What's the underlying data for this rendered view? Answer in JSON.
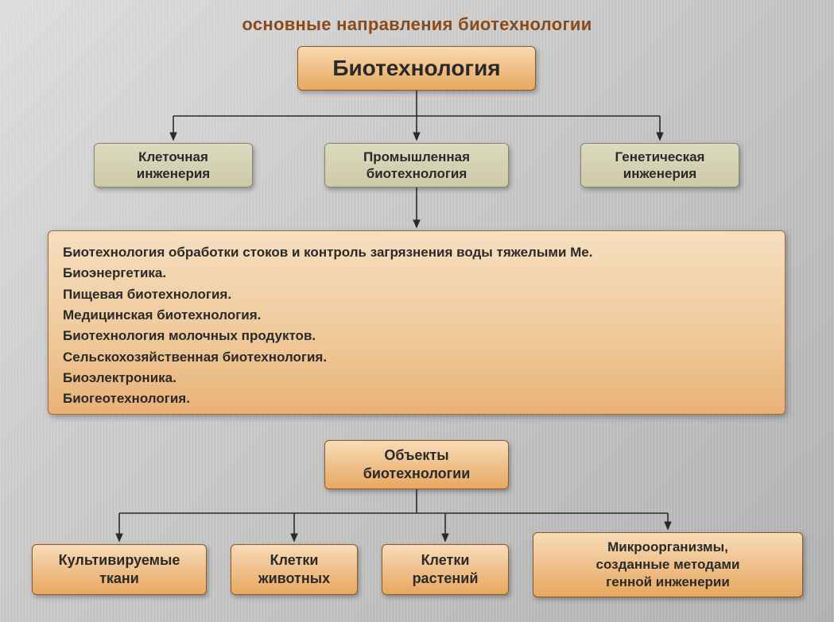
{
  "title": "основные направления биотехнологии",
  "root": {
    "label": "Биотехнология"
  },
  "branches": {
    "left": {
      "line1": "Клеточная",
      "line2": "инженерия"
    },
    "center": {
      "line1": "Промышленная",
      "line2": "биотехнология"
    },
    "right": {
      "line1": "Генетическая",
      "line2": "инженерия"
    }
  },
  "industrial_list": [
    "Биотехнология обработки стоков и контроль загрязнения воды тяжелыми Ме.",
    "Биоэнергетика.",
    "Пищевая биотехнология.",
    "Медицинская биотехнология.",
    "Биотехнология молочных продуктов.",
    "Сельскохозяйственная биотехнология.",
    "Биоэлектроника.",
    "Биогеотехнология."
  ],
  "objects_heading": {
    "line1": "Объекты",
    "line2": "биотехнологии"
  },
  "objects": {
    "a": {
      "line1": "Культивируемые",
      "line2": "ткани"
    },
    "b": {
      "line1": "Клетки",
      "line2": "животных"
    },
    "c": {
      "line1": "Клетки",
      "line2": "растений"
    },
    "d": {
      "line1": "Микроорганизмы,",
      "line2": "созданные методами",
      "line3": "генной инженерии"
    }
  },
  "style": {
    "stroke": "#2a2a2a",
    "stroke_width": 1.6
  }
}
